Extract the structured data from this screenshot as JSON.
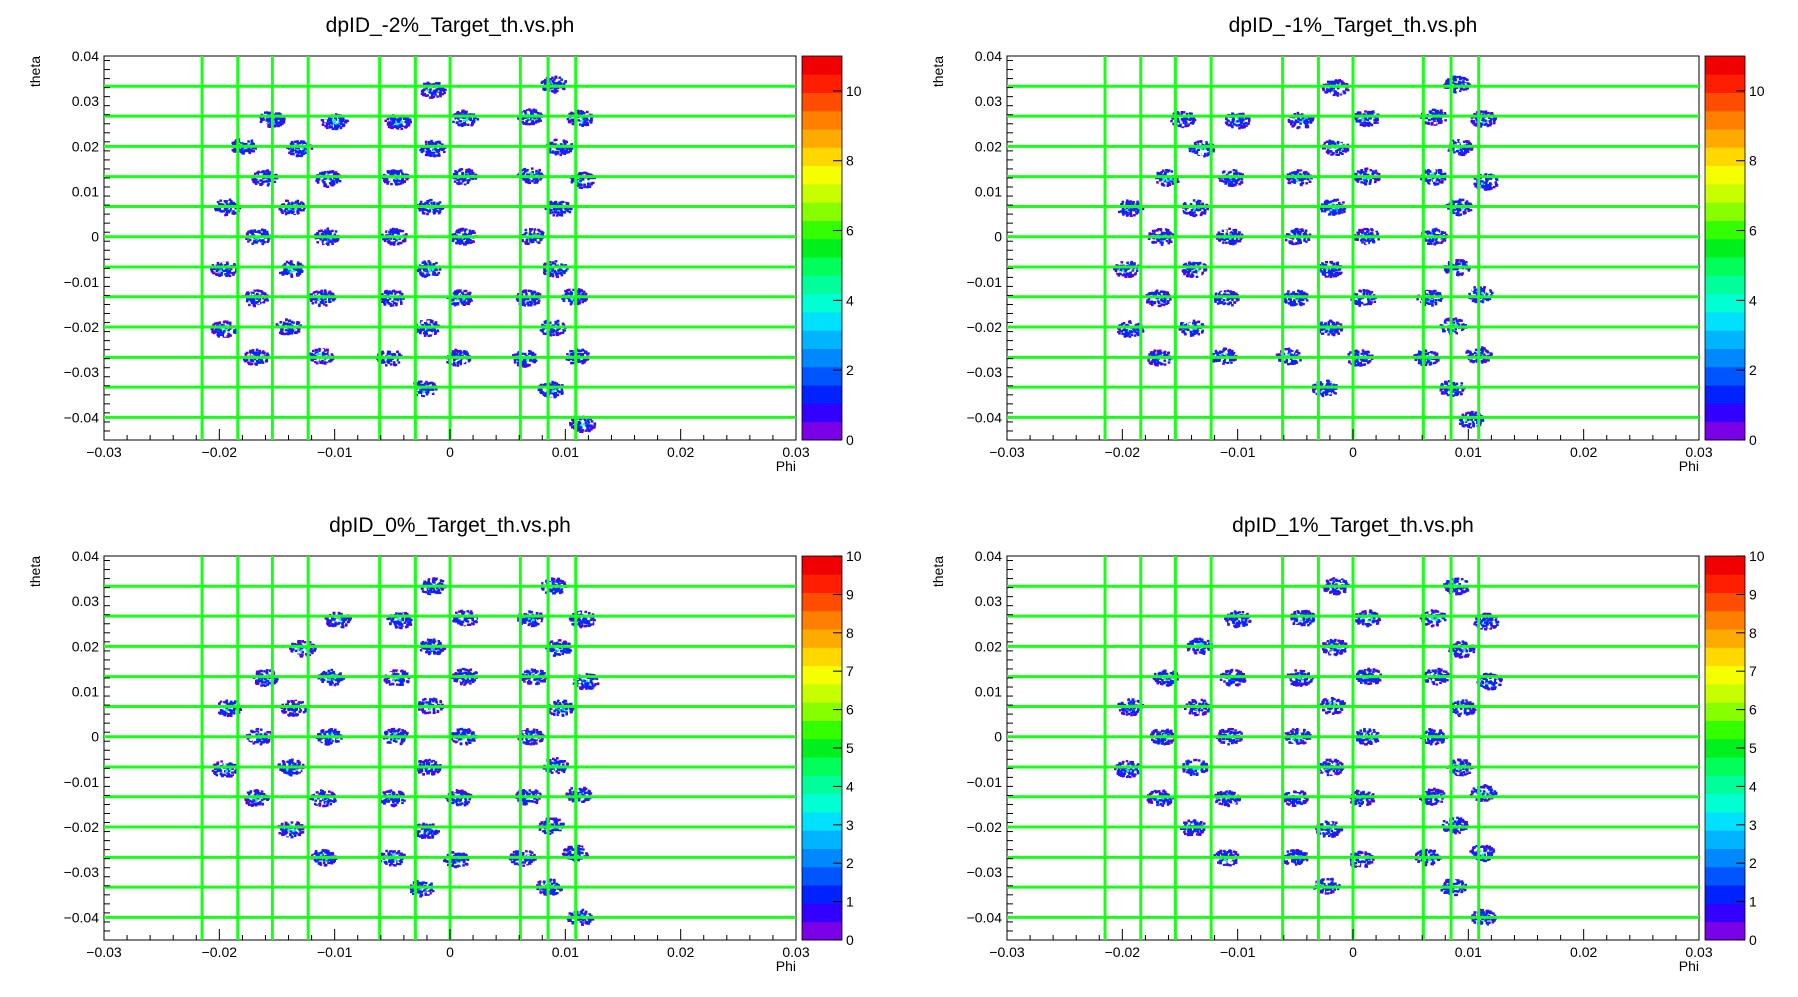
{
  "chart_data": [
    {
      "type": "heatmap",
      "title": "dpID_-2%_Target_th.vs.ph",
      "xlabel": "Phi",
      "ylabel": "theta",
      "xlim": [
        -0.03,
        0.03
      ],
      "ylim": [
        -0.045,
        0.04
      ],
      "x_ticks": [
        "−0.03",
        "−0.02",
        "−0.01",
        "0",
        "0.01",
        "0.02",
        "0.03"
      ],
      "y_ticks": [
        "−0.04",
        "−0.03",
        "−0.02",
        "−0.01",
        "0",
        "0.01",
        "0.02",
        "0.03",
        "0.04"
      ],
      "z_range": [
        0,
        11
      ],
      "z_ticks": [
        "0",
        "2",
        "4",
        "6",
        "8",
        "10"
      ],
      "grid_lines_phi": [
        -0.0215,
        -0.0184,
        -0.0154,
        -0.0123,
        -0.0061,
        -0.003,
        0.0,
        0.0061,
        0.0085,
        0.0109
      ],
      "grid_lines_theta": [
        0.0333,
        0.0267,
        0.02,
        0.0133,
        0.0067,
        0.0,
        -0.0067,
        -0.0133,
        -0.02,
        -0.0267,
        -0.0333,
        -0.04
      ],
      "spots": [
        [
          -0.0015,
          0.0325
        ],
        [
          0.009,
          0.0337
        ],
        [
          -0.0154,
          0.026
        ],
        [
          -0.01,
          0.0255
        ],
        [
          -0.0045,
          0.0255
        ],
        [
          0.0013,
          0.0262
        ],
        [
          0.007,
          0.0265
        ],
        [
          0.0113,
          0.0262
        ],
        [
          -0.0179,
          0.02
        ],
        [
          -0.0131,
          0.0195
        ],
        [
          -0.0015,
          0.0195
        ],
        [
          0.0095,
          0.0198
        ],
        [
          -0.0161,
          0.013
        ],
        [
          -0.0105,
          0.0128
        ],
        [
          -0.0047,
          0.0131
        ],
        [
          0.0012,
          0.0133
        ],
        [
          0.007,
          0.0135
        ],
        [
          0.0115,
          0.0125
        ],
        [
          -0.0193,
          0.0065
        ],
        [
          -0.0137,
          0.0065
        ],
        [
          -0.0017,
          0.0065
        ],
        [
          0.0094,
          0.0063
        ],
        [
          -0.0166,
          0.0
        ],
        [
          -0.0107,
          0.0
        ],
        [
          -0.0048,
          0.0
        ],
        [
          0.0012,
          0.0
        ],
        [
          0.0071,
          0.0
        ],
        [
          -0.0196,
          -0.0072
        ],
        [
          -0.0138,
          -0.0072
        ],
        [
          -0.0019,
          -0.0072
        ],
        [
          0.0091,
          -0.0072
        ],
        [
          -0.0169,
          -0.0136
        ],
        [
          -0.0111,
          -0.0136
        ],
        [
          -0.005,
          -0.0136
        ],
        [
          0.0009,
          -0.0136
        ],
        [
          0.0068,
          -0.0136
        ],
        [
          0.0108,
          -0.0133
        ],
        [
          -0.0196,
          -0.0205
        ],
        [
          -0.014,
          -0.02
        ],
        [
          -0.002,
          -0.0202
        ],
        [
          0.0089,
          -0.0202
        ],
        [
          -0.0168,
          -0.0268
        ],
        [
          -0.0112,
          -0.0265
        ],
        [
          -0.0052,
          -0.0268
        ],
        [
          0.0007,
          -0.0268
        ],
        [
          0.0065,
          -0.027
        ],
        [
          0.011,
          -0.0265
        ],
        [
          -0.0023,
          -0.0336
        ],
        [
          0.0088,
          -0.0338
        ],
        [
          0.0115,
          -0.0415
        ]
      ]
    },
    {
      "type": "heatmap",
      "title": "dpID_-1%_Target_th.vs.ph",
      "xlabel": "Phi",
      "ylabel": "theta",
      "xlim": [
        -0.03,
        0.03
      ],
      "ylim": [
        -0.045,
        0.04
      ],
      "x_ticks": [
        "−0.03",
        "−0.02",
        "−0.01",
        "0",
        "0.01",
        "0.02",
        "0.03"
      ],
      "y_ticks": [
        "−0.04",
        "−0.03",
        "−0.02",
        "−0.01",
        "0",
        "0.01",
        "0.02",
        "0.03",
        "0.04"
      ],
      "z_range": [
        0,
        11
      ],
      "z_ticks": [
        "0",
        "2",
        "4",
        "6",
        "8",
        "10"
      ],
      "grid_lines_phi": [
        -0.0215,
        -0.0184,
        -0.0154,
        -0.0123,
        -0.0061,
        -0.003,
        0.0,
        0.0061,
        0.0085,
        0.0109
      ],
      "grid_lines_theta": [
        0.0333,
        0.0267,
        0.02,
        0.0133,
        0.0067,
        0.0,
        -0.0067,
        -0.0133,
        -0.02,
        -0.0267,
        -0.0333,
        -0.04
      ],
      "spots": [
        [
          -0.0015,
          0.033
        ],
        [
          0.009,
          0.0337
        ],
        [
          -0.0148,
          0.026
        ],
        [
          -0.01,
          0.0257
        ],
        [
          -0.0045,
          0.0257
        ],
        [
          0.0012,
          0.0262
        ],
        [
          0.007,
          0.0265
        ],
        [
          0.0113,
          0.026
        ],
        [
          -0.0131,
          0.0195
        ],
        [
          -0.0015,
          0.0198
        ],
        [
          0.0093,
          0.0198
        ],
        [
          -0.0161,
          0.013
        ],
        [
          -0.0105,
          0.013
        ],
        [
          -0.0047,
          0.013
        ],
        [
          0.0012,
          0.0133
        ],
        [
          0.007,
          0.0133
        ],
        [
          0.0115,
          0.0122
        ],
        [
          -0.0193,
          0.0063
        ],
        [
          -0.0137,
          0.0063
        ],
        [
          -0.0017,
          0.0065
        ],
        [
          0.0092,
          0.0065
        ],
        [
          -0.0166,
          0.0
        ],
        [
          -0.0107,
          0.0
        ],
        [
          -0.0048,
          0.0
        ],
        [
          0.0012,
          0.0
        ],
        [
          0.007,
          0.0
        ],
        [
          -0.0196,
          -0.0072
        ],
        [
          -0.0138,
          -0.0072
        ],
        [
          -0.002,
          -0.0072
        ],
        [
          0.009,
          -0.0068
        ],
        [
          -0.0169,
          -0.0136
        ],
        [
          -0.011,
          -0.0136
        ],
        [
          -0.005,
          -0.0136
        ],
        [
          0.0009,
          -0.0136
        ],
        [
          0.0067,
          -0.0136
        ],
        [
          0.011,
          -0.0128
        ],
        [
          -0.0193,
          -0.0205
        ],
        [
          -0.014,
          -0.0202
        ],
        [
          -0.002,
          -0.0202
        ],
        [
          0.0087,
          -0.0198
        ],
        [
          -0.0168,
          -0.0268
        ],
        [
          -0.0112,
          -0.0265
        ],
        [
          -0.0055,
          -0.0265
        ],
        [
          0.0006,
          -0.0268
        ],
        [
          0.0064,
          -0.0268
        ],
        [
          0.0109,
          -0.0262
        ],
        [
          -0.0024,
          -0.0336
        ],
        [
          0.0086,
          -0.0336
        ],
        [
          0.0102,
          -0.0405
        ]
      ]
    },
    {
      "type": "heatmap",
      "title": "dpID_0%_Target_th.vs.ph",
      "xlabel": "Phi",
      "ylabel": "theta",
      "xlim": [
        -0.03,
        0.03
      ],
      "ylim": [
        -0.045,
        0.04
      ],
      "x_ticks": [
        "−0.03",
        "−0.02",
        "−0.01",
        "0",
        "0.01",
        "0.02",
        "0.03"
      ],
      "y_ticks": [
        "−0.04",
        "−0.03",
        "−0.02",
        "−0.01",
        "0",
        "0.01",
        "0.02",
        "0.03",
        "0.04"
      ],
      "z_range": [
        0,
        10
      ],
      "z_ticks": [
        "0",
        "1",
        "2",
        "3",
        "4",
        "5",
        "6",
        "7",
        "8",
        "9",
        "10"
      ],
      "grid_lines_phi": [
        -0.0215,
        -0.0184,
        -0.0154,
        -0.0123,
        -0.0061,
        -0.003,
        0.0,
        0.0061,
        0.0085,
        0.0109
      ],
      "grid_lines_theta": [
        0.0333,
        0.0267,
        0.02,
        0.0133,
        0.0067,
        0.0,
        -0.0067,
        -0.0133,
        -0.02,
        -0.0267,
        -0.0333,
        -0.04
      ],
      "spots": [
        [
          -0.0015,
          0.0333
        ],
        [
          0.009,
          0.0333
        ],
        [
          -0.0097,
          0.0258
        ],
        [
          -0.0043,
          0.0258
        ],
        [
          0.0013,
          0.0262
        ],
        [
          0.007,
          0.0262
        ],
        [
          0.0115,
          0.026
        ],
        [
          -0.0128,
          0.0195
        ],
        [
          -0.0015,
          0.0198
        ],
        [
          0.0094,
          0.0196
        ],
        [
          -0.016,
          0.013
        ],
        [
          -0.0103,
          0.013
        ],
        [
          -0.0046,
          0.013
        ],
        [
          0.0013,
          0.0133
        ],
        [
          0.0073,
          0.0133
        ],
        [
          0.0118,
          0.0122
        ],
        [
          -0.0192,
          0.0063
        ],
        [
          -0.0135,
          0.0063
        ],
        [
          -0.0017,
          0.0068
        ],
        [
          0.0096,
          0.0063
        ],
        [
          -0.0165,
          0.0
        ],
        [
          -0.0105,
          0.0
        ],
        [
          -0.0047,
          0.0
        ],
        [
          0.0012,
          0.0
        ],
        [
          0.007,
          0.0
        ],
        [
          -0.0195,
          -0.0072
        ],
        [
          -0.0138,
          -0.0068
        ],
        [
          -0.0019,
          -0.0068
        ],
        [
          0.0092,
          -0.0065
        ],
        [
          -0.0168,
          -0.0136
        ],
        [
          -0.011,
          -0.0136
        ],
        [
          -0.005,
          -0.0136
        ],
        [
          0.0008,
          -0.0136
        ],
        [
          0.0068,
          -0.0133
        ],
        [
          0.0112,
          -0.0128
        ],
        [
          -0.0138,
          -0.0205
        ],
        [
          -0.0021,
          -0.0208
        ],
        [
          0.0088,
          -0.0198
        ],
        [
          -0.011,
          -0.0268
        ],
        [
          -0.005,
          -0.0268
        ],
        [
          0.0006,
          -0.0272
        ],
        [
          0.0063,
          -0.0268
        ],
        [
          0.0109,
          -0.0258
        ],
        [
          -0.0024,
          -0.0336
        ],
        [
          0.0086,
          -0.0333
        ],
        [
          0.0113,
          -0.04
        ]
      ]
    },
    {
      "type": "heatmap",
      "title": "dpID_1%_Target_th.vs.ph",
      "xlabel": "Phi",
      "ylabel": "theta",
      "xlim": [
        -0.03,
        0.03
      ],
      "ylim": [
        -0.045,
        0.04
      ],
      "x_ticks": [
        "−0.03",
        "−0.02",
        "−0.01",
        "0",
        "0.01",
        "0.02",
        "0.03"
      ],
      "y_ticks": [
        "−0.04",
        "−0.03",
        "−0.02",
        "−0.01",
        "0",
        "0.01",
        "0.02",
        "0.03",
        "0.04"
      ],
      "z_range": [
        0,
        10
      ],
      "z_ticks": [
        "0",
        "1",
        "2",
        "3",
        "4",
        "5",
        "6",
        "7",
        "8",
        "9",
        "10"
      ],
      "grid_lines_phi": [
        -0.0215,
        -0.0184,
        -0.0154,
        -0.0123,
        -0.0061,
        -0.003,
        0.0,
        0.0061,
        0.0085,
        0.0109
      ],
      "grid_lines_theta": [
        0.0333,
        0.0267,
        0.02,
        0.0133,
        0.0067,
        0.0,
        -0.0067,
        -0.0133,
        -0.02,
        -0.0267,
        -0.0333,
        -0.04
      ],
      "spots": [
        [
          -0.0015,
          0.0333
        ],
        [
          0.009,
          0.0333
        ],
        [
          -0.01,
          0.026
        ],
        [
          -0.0044,
          0.0262
        ],
        [
          0.0013,
          0.0262
        ],
        [
          0.007,
          0.0262
        ],
        [
          0.0115,
          0.0255
        ],
        [
          -0.0133,
          0.02
        ],
        [
          -0.0016,
          0.0198
        ],
        [
          0.0094,
          0.0193
        ],
        [
          -0.0162,
          0.013
        ],
        [
          -0.0104,
          0.013
        ],
        [
          -0.0046,
          0.013
        ],
        [
          0.0014,
          0.0133
        ],
        [
          0.0072,
          0.0133
        ],
        [
          0.0118,
          0.0122
        ],
        [
          -0.0193,
          0.0065
        ],
        [
          -0.0135,
          0.0065
        ],
        [
          -0.0018,
          0.0068
        ],
        [
          0.0095,
          0.0063
        ],
        [
          -0.0165,
          0.0
        ],
        [
          -0.0107,
          0.0
        ],
        [
          -0.0048,
          0.0
        ],
        [
          0.0013,
          0.0
        ],
        [
          0.007,
          0.0
        ],
        [
          -0.0195,
          -0.0072
        ],
        [
          -0.0137,
          -0.0068
        ],
        [
          -0.0019,
          -0.0068
        ],
        [
          0.0093,
          -0.0068
        ],
        [
          -0.0167,
          -0.0136
        ],
        [
          -0.0109,
          -0.0136
        ],
        [
          -0.005,
          -0.0136
        ],
        [
          0.0008,
          -0.0136
        ],
        [
          0.0069,
          -0.0133
        ],
        [
          0.0113,
          -0.0125
        ],
        [
          -0.0138,
          -0.0202
        ],
        [
          -0.0021,
          -0.0205
        ],
        [
          0.0088,
          -0.0196
        ],
        [
          -0.011,
          -0.0268
        ],
        [
          -0.005,
          -0.0268
        ],
        [
          0.0007,
          -0.0272
        ],
        [
          0.0065,
          -0.0268
        ],
        [
          0.0112,
          -0.0258
        ],
        [
          -0.0023,
          -0.033
        ],
        [
          0.0087,
          -0.0333
        ],
        [
          0.0113,
          -0.04
        ]
      ]
    }
  ],
  "colors": {
    "grid_line": "#1aff1a",
    "palette": [
      "#7a00e6",
      "#3300ff",
      "#0022ff",
      "#0055ff",
      "#0088ff",
      "#00b4ff",
      "#00e1ff",
      "#00ffd2",
      "#00ff9a",
      "#00ff5a",
      "#00f01e",
      "#33ff00",
      "#88ff00",
      "#c8ff00",
      "#f5ff00",
      "#ffd800",
      "#ffaa00",
      "#ff7f00",
      "#ff4d00",
      "#ff1e00",
      "#f00000"
    ],
    "spot_core": "#0a23ff",
    "spot_edge": "#5a00d8",
    "spot_hot": "#1ef0d8"
  }
}
